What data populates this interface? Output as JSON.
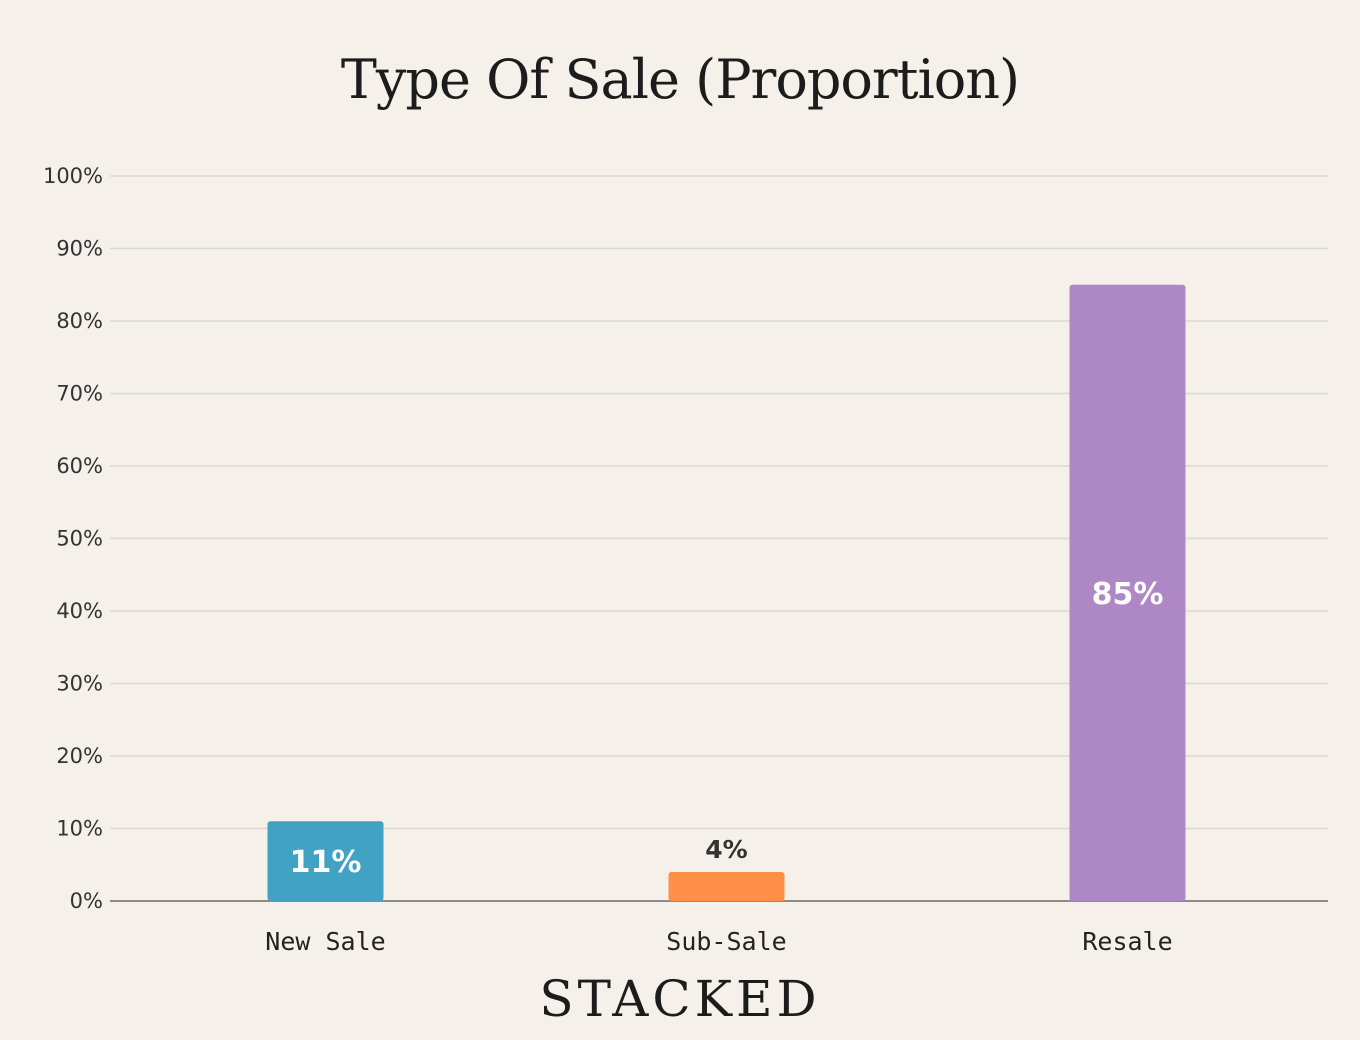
{
  "chart_data": {
    "type": "bar",
    "title": "Type Of Sale (Proportion)",
    "xlabel": "",
    "ylabel": "",
    "categories": [
      "New Sale",
      "Sub-Sale",
      "Resale"
    ],
    "values": [
      11,
      4,
      85
    ],
    "value_labels": [
      "11%",
      "4%",
      "85%"
    ],
    "colors": [
      "#41a2c4",
      "#fd8f47",
      "#ae88c5"
    ],
    "ylim": [
      0,
      100
    ],
    "yticks": [
      0,
      10,
      20,
      30,
      40,
      50,
      60,
      70,
      80,
      90,
      100
    ],
    "ytick_labels": [
      "0%",
      "10%",
      "20%",
      "30%",
      "40%",
      "50%",
      "60%",
      "70%",
      "80%",
      "90%",
      "100%"
    ],
    "grid": true,
    "legend": "none"
  },
  "brand": {
    "name": "STACKED"
  }
}
